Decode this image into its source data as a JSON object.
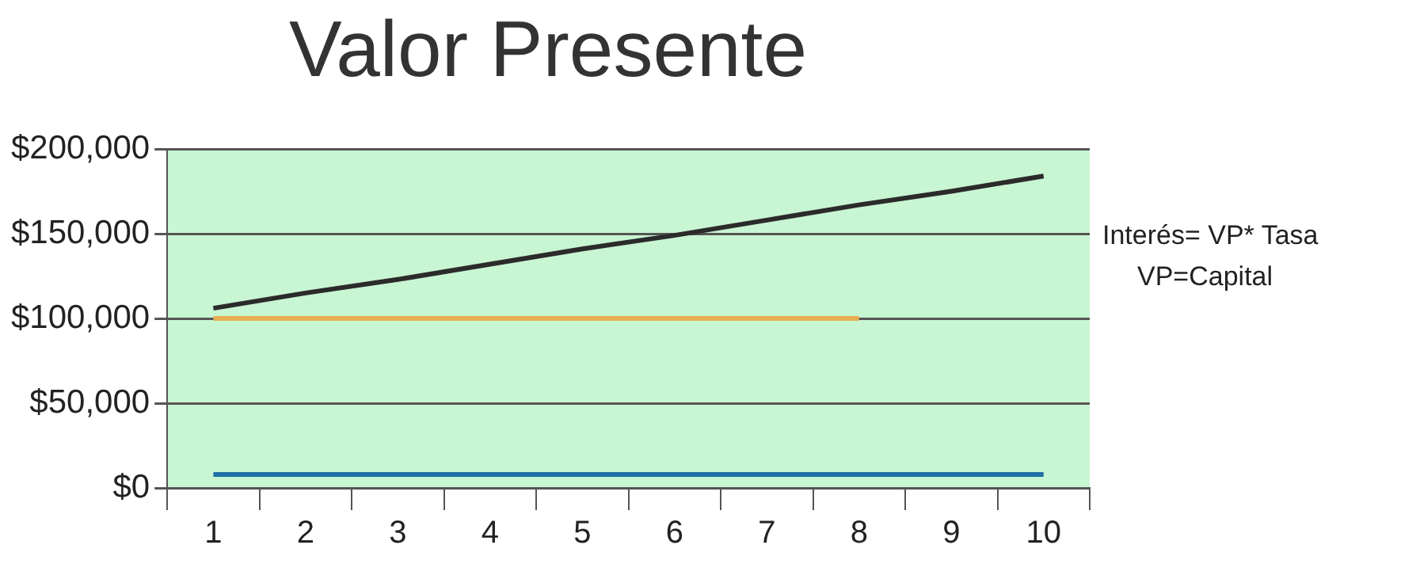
{
  "chart_data": {
    "type": "line",
    "title": "Valor Presente",
    "categories": [
      "1",
      "2",
      "3",
      "4",
      "5",
      "6",
      "7",
      "8",
      "9",
      "10"
    ],
    "series": [
      {
        "color": "#2b2b2b",
        "values": [
          106000,
          115000,
          123000,
          132000,
          141000,
          149000,
          158000,
          167000,
          175000,
          184000
        ]
      },
      {
        "color": "#e8b050",
        "values": [
          100000,
          100000,
          100000,
          100000,
          100000,
          100000,
          100000,
          100000,
          null,
          null
        ]
      },
      {
        "color": "#1f6fa8",
        "values": [
          8000,
          8000,
          8000,
          8000,
          8000,
          8000,
          8000,
          8000,
          8000,
          8000
        ]
      }
    ],
    "ylim": [
      0,
      200000
    ],
    "yticks": [
      {
        "value": 0,
        "label": "$0"
      },
      {
        "value": 50000,
        "label": "$50,000"
      },
      {
        "value": 100000,
        "label": "$100,000"
      },
      {
        "value": 150000,
        "label": "$150,000"
      },
      {
        "value": 200000,
        "label": "$200,000"
      }
    ],
    "grid": "y",
    "legend": false,
    "marker": "none",
    "line_style": "solid",
    "annotations": [
      "Interés= VP* Tasa",
      "VP=Capital"
    ]
  }
}
